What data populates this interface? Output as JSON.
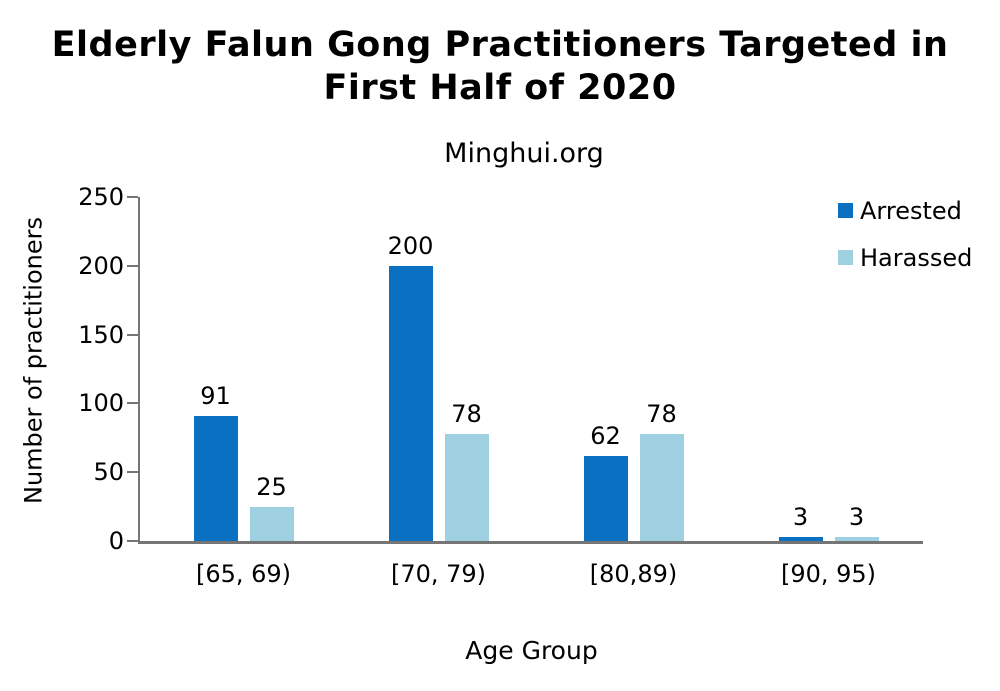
{
  "chart_data": {
    "type": "bar",
    "title": "Elderly Falun Gong Practitioners Targeted in First Half of 2020",
    "title_lines": [
      "Elderly Falun Gong Practitioners Targeted in",
      "First Half of 2020"
    ],
    "subtitle": "Minghui.org",
    "xlabel": "Age Group",
    "ylabel": "Number of practitioners",
    "categories": [
      "[65, 69)",
      "[70, 79)",
      "[80,89)",
      "[90, 95)"
    ],
    "series": [
      {
        "name": "Arrested",
        "color": "#0A71C2",
        "values": [
          91,
          200,
          62,
          3
        ]
      },
      {
        "name": "Harassed",
        "color": "#9FD0E1",
        "values": [
          25,
          78,
          78,
          3
        ]
      }
    ],
    "ylim": [
      0,
      250
    ],
    "yticks": [
      0,
      50,
      100,
      150,
      200,
      250
    ],
    "grid": false,
    "value_labels": true,
    "legend_position": "top-right",
    "axis_color": "#757575",
    "text_color": "#000000",
    "background_color": "#ffffff"
  }
}
